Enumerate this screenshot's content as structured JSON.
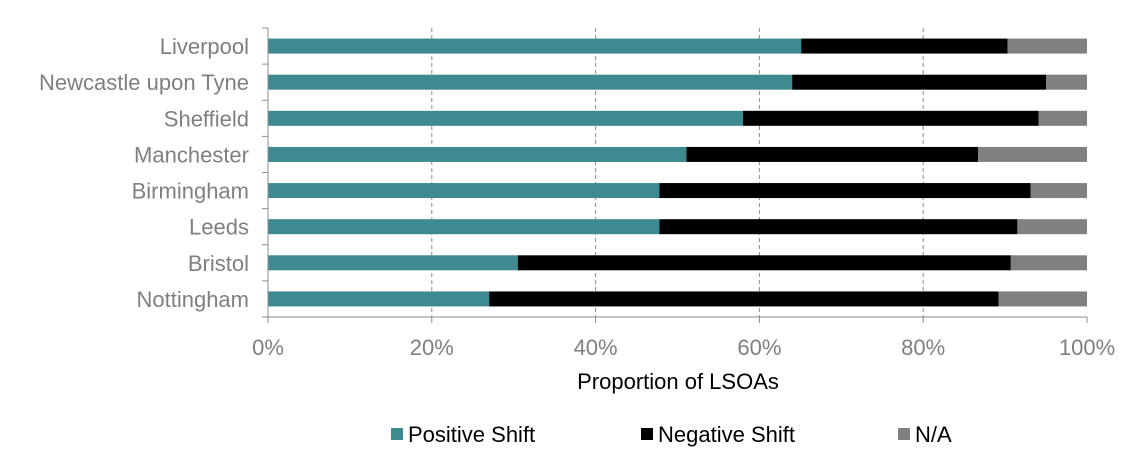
{
  "chart_data": {
    "type": "bar",
    "orientation": "horizontal",
    "stacked": true,
    "title": "",
    "xlabel": "Proportion of LSOAs",
    "ylabel": "",
    "xlim": [
      0,
      1
    ],
    "x_ticks": [
      0,
      0.2,
      0.4,
      0.6,
      0.8,
      1.0
    ],
    "x_tick_labels": [
      "0%",
      "20%",
      "40%",
      "60%",
      "80%",
      "100%"
    ],
    "grid": "vertical-dashed",
    "legend_position": "bottom",
    "categories": [
      "Liverpool",
      "Newcastle upon Tyne",
      "Sheffield",
      "Manchester",
      "Birmingham",
      "Leeds",
      "Bristol",
      "Nottingham"
    ],
    "series": [
      {
        "name": "Positive Shift",
        "color": "#3e8a91",
        "values": [
          0.651,
          0.64,
          0.58,
          0.511,
          0.478,
          0.478,
          0.305,
          0.27
        ]
      },
      {
        "name": "Negative Shift",
        "color": "#000000",
        "values": [
          0.252,
          0.31,
          0.361,
          0.356,
          0.453,
          0.437,
          0.602,
          0.622
        ]
      },
      {
        "name": "N/A",
        "color": "#808080",
        "values": [
          0.097,
          0.05,
          0.059,
          0.133,
          0.069,
          0.085,
          0.093,
          0.108
        ]
      }
    ]
  }
}
